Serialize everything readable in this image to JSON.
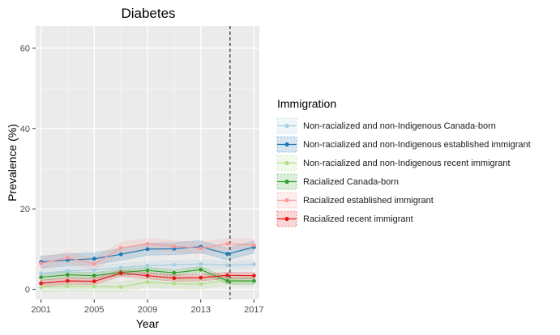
{
  "chart_data": {
    "type": "line",
    "title": "Diabetes",
    "xlabel": "Year",
    "ylabel": "Prevalence (%)",
    "xlim": [
      2000.6,
      2017.4
    ],
    "ylim": [
      -2.5,
      65.5
    ],
    "x_ticks": [
      "2001",
      "2005",
      "2009",
      "2013",
      "2017"
    ],
    "y_ticks": [
      "0",
      "20",
      "40",
      "60"
    ],
    "grid": true,
    "vline_x": 2015.2,
    "legend_title": "Immigration",
    "legend_position": "right",
    "x": [
      2001,
      2003,
      2005,
      2007,
      2009,
      2011,
      2013,
      2015,
      2017
    ],
    "series": [
      {
        "name": "Non-racialized and non-Indigenous Canada-born",
        "color": "#a6cee3",
        "values": [
          4.0,
          4.6,
          4.8,
          5.4,
          5.9,
          6.1,
          6.3,
          6.0,
          6.2
        ],
        "band": 1.0
      },
      {
        "name": "Non-racialized and non-Indigenous established immigrant",
        "color": "#1f78b4",
        "values": [
          6.8,
          7.3,
          7.6,
          8.7,
          10.0,
          10.1,
          10.6,
          8.8,
          10.5
        ],
        "band": 1.5
      },
      {
        "name": "Non-racialized and non-Indigenous recent immigrant",
        "color": "#b2df8a",
        "values": [
          0.5,
          0.8,
          0.7,
          0.6,
          1.8,
          1.4,
          1.3,
          2.3,
          2.1
        ],
        "band": 1.2
      },
      {
        "name": "Racialized Canada-born",
        "color": "#33a02c",
        "values": [
          3.0,
          3.6,
          3.4,
          4.2,
          4.7,
          4.1,
          4.9,
          2.1,
          2.1
        ],
        "band": 0.8
      },
      {
        "name": "Racialized established immigrant",
        "color": "#fb9a99",
        "values": [
          6.4,
          7.9,
          6.3,
          10.3,
          11.3,
          10.7,
          10.2,
          11.3,
          11.0
        ],
        "band": 1.4
      },
      {
        "name": "Racialized recent immigrant",
        "color": "#e31a1c",
        "values": [
          1.5,
          2.1,
          2.0,
          4.0,
          3.4,
          2.8,
          2.9,
          3.5,
          3.4
        ],
        "band": 0.8
      }
    ]
  }
}
